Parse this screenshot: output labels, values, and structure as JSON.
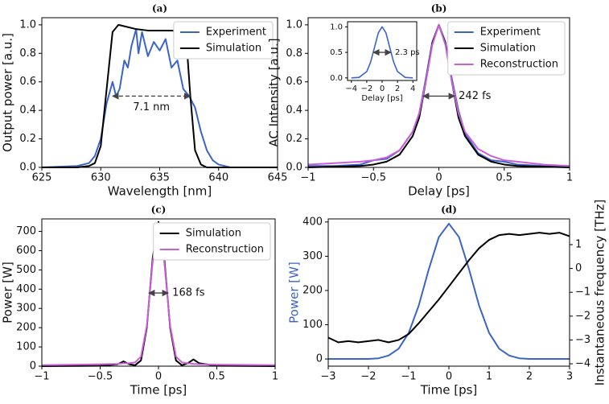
{
  "chart_data": [
    {
      "type": "line",
      "title": "(a)",
      "xlabel": "Wavelength [nm]",
      "ylabel": "Output power [a.u.]",
      "xlim": [
        625,
        645
      ],
      "xticks": [
        625,
        630,
        635,
        640,
        645
      ],
      "ylim": [
        0,
        1.05
      ],
      "yticks": [
        {
          "value": 0,
          "label": "0.0"
        },
        0.2,
        0.4,
        0.6,
        0.8,
        {
          "value": 1,
          "label": "1.0"
        }
      ],
      "legend": "upper right",
      "series": [
        {
          "name": "Experiment",
          "color": "#3c64c8",
          "x": [
            625,
            628,
            629,
            629.5,
            630,
            630.5,
            631,
            631.3,
            631.6,
            632,
            632.3,
            632.6,
            633,
            633.2,
            633.5,
            634,
            634.5,
            635,
            635.5,
            636,
            636.5,
            637,
            637.5,
            638,
            638.5,
            639,
            639.5,
            640,
            641,
            642,
            645
          ],
          "values": [
            0,
            0.01,
            0.03,
            0.08,
            0.2,
            0.45,
            0.6,
            0.5,
            0.55,
            0.75,
            0.7,
            0.85,
            0.97,
            0.8,
            0.95,
            0.78,
            0.88,
            0.82,
            0.9,
            0.7,
            0.75,
            0.55,
            0.5,
            0.42,
            0.25,
            0.12,
            0.05,
            0.02,
            0,
            0,
            0
          ]
        },
        {
          "name": "Simulation",
          "color": "#000000",
          "x": [
            625,
            627,
            628,
            629,
            629.5,
            630,
            630.5,
            631,
            631.5,
            632,
            633,
            634,
            635,
            636,
            637,
            637.3,
            637.6,
            638,
            638.5,
            639,
            640,
            642,
            645
          ],
          "values": [
            0,
            0,
            0,
            0.01,
            0.03,
            0.15,
            0.55,
            0.95,
            1.0,
            0.99,
            0.97,
            0.96,
            0.96,
            0.96,
            0.95,
            0.85,
            0.5,
            0.12,
            0.02,
            0,
            0,
            0,
            0
          ]
        }
      ],
      "annotations": [
        {
          "text": "7.1 nm",
          "x1": 631,
          "x2": 637.6,
          "y": 0.5,
          "linestyle": "dashed"
        }
      ]
    },
    {
      "type": "line",
      "title": "(b)",
      "xlabel": "Delay [ps]",
      "ylabel": "AC Intensity [a.u.]",
      "xlim": [
        -1,
        1
      ],
      "xticks": [
        {
          "value": -1,
          "label": "−1"
        },
        {
          "value": -0.5,
          "label": "−0.5"
        },
        0,
        0.5,
        1
      ],
      "ylim": [
        0,
        1.05
      ],
      "yticks": [
        {
          "value": 0,
          "label": "0.0"
        },
        0.2,
        0.4,
        0.6,
        0.8,
        {
          "value": 1,
          "label": "1.0"
        }
      ],
      "legend": "upper right",
      "x": [
        -1,
        -0.8,
        -0.6,
        -0.5,
        -0.4,
        -0.3,
        -0.2,
        -0.15,
        -0.1,
        -0.05,
        0,
        0.05,
        0.1,
        0.15,
        0.2,
        0.3,
        0.4,
        0.5,
        0.6,
        0.8,
        1
      ],
      "series": [
        {
          "name": "Experiment",
          "color": "#3c64c8",
          "values": [
            0.01,
            0.01,
            0.02,
            0.05,
            0.06,
            0.12,
            0.25,
            0.38,
            0.62,
            0.88,
            1,
            0.88,
            0.62,
            0.4,
            0.24,
            0.1,
            0.05,
            0.04,
            0.02,
            0.01,
            0.01
          ]
        },
        {
          "name": "Simulation",
          "color": "#000000",
          "values": [
            0,
            0.005,
            0.01,
            0.02,
            0.04,
            0.09,
            0.22,
            0.35,
            0.6,
            0.87,
            1,
            0.87,
            0.6,
            0.35,
            0.22,
            0.09,
            0.04,
            0.02,
            0.01,
            0.005,
            0
          ]
        },
        {
          "name": "Reconstruction",
          "color": "#cc5fd8",
          "values": [
            0.02,
            0.03,
            0.04,
            0.05,
            0.07,
            0.12,
            0.25,
            0.38,
            0.6,
            0.86,
            1,
            0.86,
            0.6,
            0.38,
            0.25,
            0.13,
            0.08,
            0.05,
            0.04,
            0.02,
            0.01
          ]
        }
      ],
      "annotations": [
        {
          "text": "242 fs",
          "x1": -0.121,
          "x2": 0.121,
          "y": 0.5
        }
      ]
    },
    {
      "type": "line",
      "xlabel": "Delay [ps]",
      "xlim": [
        -4.5,
        4.5
      ],
      "xticks": [
        {
          "value": -4,
          "label": "−4"
        },
        {
          "value": -2,
          "label": "−2"
        },
        0,
        2,
        4
      ],
      "ylim": [
        -0.05,
        1.1
      ],
      "yticks": [
        {
          "value": 0,
          "label": "0.0"
        },
        0.5,
        {
          "value": 1,
          "label": "1.0"
        }
      ],
      "x": [
        -4,
        -3,
        -2,
        -1.5,
        -1,
        -0.5,
        0,
        0.5,
        1,
        1.5,
        2,
        3,
        4
      ],
      "series": [
        {
          "color": "#3c64c8",
          "values": [
            0,
            0.01,
            0.125,
            0.31,
            0.59,
            0.88,
            1,
            0.88,
            0.59,
            0.31,
            0.125,
            0.01,
            0
          ]
        }
      ],
      "annotations": [
        {
          "text": "2.3 ps",
          "x1": -1.15,
          "x2": 1.15,
          "y": 0.5
        }
      ]
    },
    {
      "type": "line",
      "title": "(c)",
      "xlabel": "Time [ps]",
      "ylabel": "Power [W]",
      "xlim": [
        -1,
        1
      ],
      "xticks": [
        {
          "value": -1,
          "label": "−1"
        },
        {
          "value": -0.5,
          "label": "−0.5"
        },
        0,
        0.5,
        1
      ],
      "ylim": [
        0,
        765
      ],
      "yticks": [
        0,
        100,
        200,
        300,
        400,
        500,
        600,
        700
      ],
      "legend": "upper right",
      "x": [
        -1,
        -0.5,
        -0.35,
        -0.3,
        -0.25,
        -0.2,
        -0.15,
        -0.1,
        -0.05,
        0,
        0.05,
        0.1,
        0.15,
        0.2,
        0.25,
        0.3,
        0.35,
        0.5,
        1
      ],
      "series": [
        {
          "name": "Simulation",
          "color": "#000000",
          "values": [
            0,
            2,
            10,
            25,
            10,
            5,
            30,
            200,
            560,
            750,
            560,
            200,
            30,
            5,
            15,
            35,
            15,
            2,
            0
          ]
        },
        {
          "name": "Reconstruction",
          "color": "#cc5fd8",
          "values": [
            5,
            10,
            12,
            15,
            15,
            20,
            50,
            210,
            540,
            740,
            540,
            210,
            50,
            20,
            15,
            12,
            10,
            8,
            5
          ]
        }
      ],
      "annotations": [
        {
          "text": "168 fs",
          "x1": -0.084,
          "x2": 0.084,
          "y": 380
        }
      ]
    },
    {
      "type": "line",
      "title": "(d)",
      "xlabel": "Time [ps]",
      "ylabel": "Power [W]",
      "ylabel_color": "#3c64c8",
      "y2label": "Instantaneous frequency [THz]",
      "xlim": [
        -3,
        3
      ],
      "xticks": [
        {
          "value": -3,
          "label": "−3"
        },
        {
          "value": -2,
          "label": "−2"
        },
        {
          "value": -1,
          "label": "−1"
        },
        0,
        1,
        2,
        3
      ],
      "ylim": [
        -21,
        409
      ],
      "yticks": [
        0,
        100,
        200,
        300,
        400
      ],
      "y2lim": [
        -4.1,
        2.08
      ],
      "y2ticks": [
        {
          "value": -4,
          "label": "−4"
        },
        {
          "value": -3,
          "label": "−3"
        },
        {
          "value": -2,
          "label": "−2"
        },
        {
          "value": -1,
          "label": "−1"
        },
        0,
        1
      ],
      "x": [
        -3,
        -2.75,
        -2.5,
        -2.25,
        -2,
        -1.75,
        -1.5,
        -1.25,
        -1,
        -0.75,
        -0.5,
        -0.25,
        0,
        0.25,
        0.5,
        0.75,
        1,
        1.25,
        1.5,
        1.75,
        2,
        2.25,
        2.5,
        2.75,
        3
      ],
      "series": [
        {
          "color": "#3c64c8",
          "values": [
            0,
            0,
            0,
            0,
            0,
            2,
            10,
            30,
            76,
            156,
            262,
            356,
            395,
            356,
            262,
            156,
            76,
            30,
            10,
            2,
            0,
            0,
            0,
            0,
            0
          ]
        },
        {
          "color": "#000000",
          "axis": "y2",
          "values": [
            -2.9,
            -3.1,
            -3.05,
            -3.1,
            -3.05,
            -3.0,
            -3.1,
            -3.0,
            -2.75,
            -2.3,
            -1.8,
            -1.3,
            -0.75,
            -0.2,
            0.35,
            0.85,
            1.2,
            1.4,
            1.45,
            1.4,
            1.45,
            1.5,
            1.45,
            1.5,
            1.35
          ]
        }
      ]
    }
  ]
}
